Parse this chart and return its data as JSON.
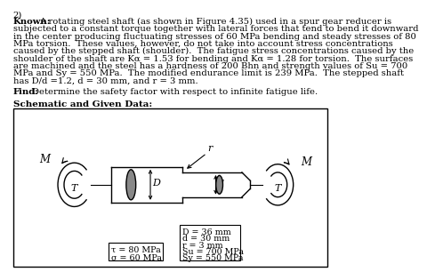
{
  "problem_number": "2)",
  "known_label": "Known:",
  "known_text_lines": [
    "A rotating steel shaft (as shown in Figure 4.35) used in a spur gear reducer is",
    "subjected to a constant torque together with lateral forces that tend to bend it downward",
    "in the center producing fluctuating stresses of 60 MPa bending and steady stresses of 80",
    "MPa torsion.  These values, however, do not take into account stress concentrations",
    "caused by the stepped shaft (shoulder).  The fatigue stress concentrations caused by the",
    "shoulder of the shaft are Kα = 1.53 for bending and Kα = 1.28 for torsion.  The surfaces",
    "are machined and the steel has a hardness of 200 Bhn and strength values of Su = 700",
    "MPa and Sy = 550 MPa.  The modified endurance limit is 239 MPa.  The stepped shaft",
    "has D/d =1.2, d = 30 mm, and r = 3 mm."
  ],
  "find_label": "Find:",
  "find_text": "Determine the safety factor with respect to infinite fatigue life.",
  "schematic_label": "Schematic and Given Data:",
  "left_box_lines": [
    "τ = 80 MPa",
    "σ = 60 MPa"
  ],
  "right_box_lines": [
    "D = 36 mm",
    "d = 30 mm",
    "r = 3 mm",
    "Su = 700 MPa",
    "Sy = 550 MPa"
  ],
  "bg_color": "#ffffff",
  "text_color": "#000000",
  "font_size_body": 7.2,
  "font_size_label": 7.5
}
